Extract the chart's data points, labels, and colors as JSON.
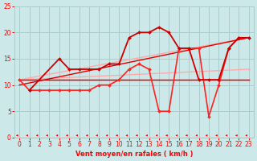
{
  "xlabel": "Vent moyen/en rafales ( km/h )",
  "xlim": [
    -0.5,
    23.5
  ],
  "ylim": [
    0,
    25
  ],
  "xticks": [
    0,
    1,
    2,
    3,
    4,
    5,
    6,
    7,
    8,
    9,
    10,
    11,
    12,
    13,
    14,
    15,
    16,
    17,
    18,
    19,
    20,
    21,
    22,
    23
  ],
  "yticks": [
    0,
    5,
    10,
    15,
    20,
    25
  ],
  "background_color": "#cce8e8",
  "grid_color": "#aacccc",
  "text_color": "#ff0000",
  "series": [
    {
      "x": [
        0,
        23
      ],
      "y": [
        11,
        11
      ],
      "color": "#ffaaaa",
      "lw": 1.0,
      "marker": "D",
      "ms": 1.5
    },
    {
      "x": [
        0,
        23
      ],
      "y": [
        11,
        13
      ],
      "color": "#ffaaaa",
      "lw": 1.0,
      "marker": "D",
      "ms": 1.5
    },
    {
      "x": [
        0,
        23
      ],
      "y": [
        11,
        19
      ],
      "color": "#ffaaaa",
      "lw": 1.0,
      "marker": "D",
      "ms": 1.5
    },
    {
      "x": [
        0,
        23
      ],
      "y": [
        11,
        11
      ],
      "color": "#dd0000",
      "lw": 1.0,
      "marker": null,
      "ms": 0
    },
    {
      "x": [
        0,
        23
      ],
      "y": [
        10,
        19
      ],
      "color": "#dd0000",
      "lw": 1.0,
      "marker": null,
      "ms": 0
    },
    {
      "x": [
        0,
        1,
        2,
        3,
        4,
        5,
        6,
        7,
        8,
        9,
        10,
        11,
        12,
        13,
        14,
        15,
        16,
        17,
        18,
        19,
        20,
        21,
        22,
        23
      ],
      "y": [
        11,
        9,
        9,
        9,
        9,
        9,
        9,
        9,
        10,
        10,
        11,
        13,
        14,
        13,
        5,
        5,
        17,
        17,
        17,
        4,
        10,
        17,
        19,
        19
      ],
      "color": "#ff2222",
      "lw": 1.2,
      "marker": "D",
      "ms": 2.0
    },
    {
      "x": [
        1,
        4,
        5,
        6,
        7,
        8,
        9,
        10,
        11,
        12,
        13,
        14,
        15,
        16,
        17,
        18,
        19,
        20,
        21,
        22,
        23
      ],
      "y": [
        9,
        15,
        13,
        13,
        13,
        13,
        14,
        14,
        19,
        20,
        20,
        21,
        20,
        17,
        17,
        11,
        11,
        11,
        17,
        19,
        19
      ],
      "color": "#cc0000",
      "lw": 1.3,
      "marker": "D",
      "ms": 2.0
    }
  ],
  "label_fontsize": 6,
  "tick_fontsize": 5.5
}
